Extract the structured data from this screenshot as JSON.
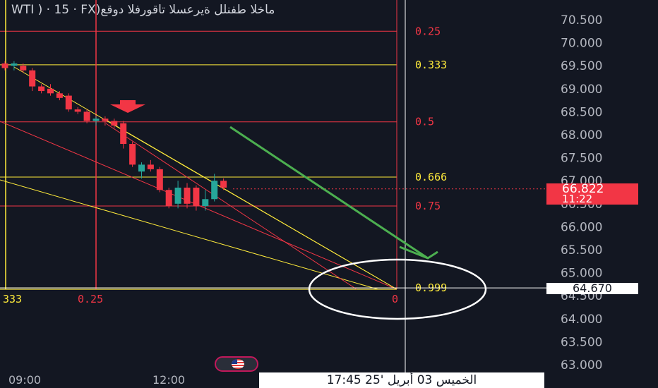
{
  "header": {
    "title": "WTI ) · 15 · FX)ماخلا طفنلل ةيرعسلا تاقورفلا دوقع"
  },
  "price_tag": {
    "price": "66.822",
    "countdown": "11:22",
    "color": "#f23645"
  },
  "crosshair": {
    "price": "64.670",
    "datetime": "الخميس 03 أبريل '25   17:45"
  },
  "colors": {
    "background": "#131722",
    "bull": "#26a69a",
    "bear": "#f23645",
    "fib_yellow": "#ffeb3b",
    "fib_red": "#f23645",
    "arrow_green": "#4caf50",
    "circle": "#ffffff",
    "axis_text": "#b2b5be"
  },
  "chart_data": {
    "type": "candlestick",
    "y_axis": {
      "ticks": [
        "70.500",
        "70.000",
        "69.500",
        "69.000",
        "68.500",
        "68.000",
        "67.500",
        "67.000",
        "66.500",
        "66.000",
        "65.500",
        "65.000",
        "64.500",
        "64.000",
        "63.500",
        "63.000"
      ],
      "range": [
        62.95,
        71.0
      ]
    },
    "x_axis": {
      "ticks": [
        "09:00",
        "12:00"
      ]
    },
    "candles": [
      {
        "o": 69.55,
        "h": 69.6,
        "l": 69.4,
        "c": 69.45
      },
      {
        "o": 69.5,
        "h": 69.6,
        "l": 69.4,
        "c": 69.55
      },
      {
        "o": 69.5,
        "h": 69.55,
        "l": 69.35,
        "c": 69.4
      },
      {
        "o": 69.4,
        "h": 69.45,
        "l": 68.95,
        "c": 69.05
      },
      {
        "o": 69.05,
        "h": 69.1,
        "l": 68.9,
        "c": 68.95
      },
      {
        "o": 69.0,
        "h": 69.1,
        "l": 68.85,
        "c": 68.9
      },
      {
        "o": 68.9,
        "h": 68.95,
        "l": 68.75,
        "c": 68.8
      },
      {
        "o": 68.85,
        "h": 68.9,
        "l": 68.5,
        "c": 68.55
      },
      {
        "o": 68.55,
        "h": 68.6,
        "l": 68.45,
        "c": 68.5
      },
      {
        "o": 68.5,
        "h": 68.55,
        "l": 68.25,
        "c": 68.3
      },
      {
        "o": 68.3,
        "h": 68.4,
        "l": 68.2,
        "c": 68.35
      },
      {
        "o": 68.35,
        "h": 68.4,
        "l": 68.2,
        "c": 68.3
      },
      {
        "o": 68.3,
        "h": 68.35,
        "l": 68.15,
        "c": 68.2
      },
      {
        "o": 68.25,
        "h": 68.3,
        "l": 67.7,
        "c": 67.8
      },
      {
        "o": 67.8,
        "h": 67.85,
        "l": 67.3,
        "c": 67.35
      },
      {
        "o": 67.2,
        "h": 67.4,
        "l": 67.05,
        "c": 67.35
      },
      {
        "o": 67.35,
        "h": 67.45,
        "l": 67.2,
        "c": 67.25
      },
      {
        "o": 67.25,
        "h": 67.3,
        "l": 66.75,
        "c": 66.8
      },
      {
        "o": 66.8,
        "h": 66.85,
        "l": 66.4,
        "c": 66.45
      },
      {
        "o": 66.5,
        "h": 67.0,
        "l": 66.4,
        "c": 66.85
      },
      {
        "o": 66.85,
        "h": 66.95,
        "l": 66.4,
        "c": 66.5
      },
      {
        "o": 66.85,
        "h": 66.9,
        "l": 66.35,
        "c": 66.45
      },
      {
        "o": 66.45,
        "h": 66.8,
        "l": 66.35,
        "c": 66.6
      },
      {
        "o": 66.6,
        "h": 67.15,
        "l": 66.55,
        "c": 67.0
      },
      {
        "o": 67.0,
        "h": 67.05,
        "l": 66.8,
        "c": 66.85
      }
    ],
    "current_price": 66.822,
    "fib_levels": [
      {
        "label": "0.25",
        "price": 70.25,
        "color": "#f23645"
      },
      {
        "label": "0.333",
        "price": 69.52,
        "color": "#ffeb3b"
      },
      {
        "label": "0.5",
        "price": 68.28,
        "color": "#f23645"
      },
      {
        "label": "0.666",
        "price": 67.08,
        "color": "#ffeb3b"
      },
      {
        "label": "0.75",
        "price": 66.45,
        "color": "#f23645"
      },
      {
        "label": "0.999",
        "price": 64.67,
        "color": "#ffeb3b"
      }
    ],
    "bottom_labels": [
      {
        "label": "333",
        "color": "#ffeb3b"
      },
      {
        "label": "0.25",
        "color": "#f23645"
      },
      {
        "label": "0",
        "color": "#f23645"
      }
    ]
  }
}
